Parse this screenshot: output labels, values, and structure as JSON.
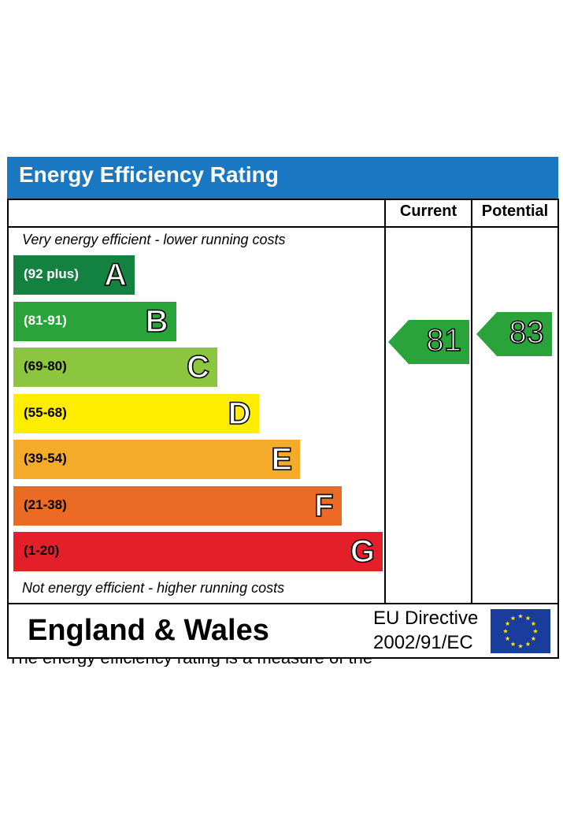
{
  "chart_data": {
    "type": "bar",
    "title": "Energy Efficiency Rating",
    "columns": [
      "Current",
      "Potential"
    ],
    "top_caption": "Very energy efficient - lower running costs",
    "bottom_caption": "Not energy efficient - higher running costs",
    "bands": [
      {
        "letter": "A",
        "range": "(92 plus)",
        "color": "#138140",
        "text_color": "#ffffff"
      },
      {
        "letter": "B",
        "range": "(81-91)",
        "color": "#2aa33b",
        "text_color": "#ffffff"
      },
      {
        "letter": "C",
        "range": "(69-80)",
        "color": "#8cc63f",
        "text_color": "#000000"
      },
      {
        "letter": "D",
        "range": "(55-68)",
        "color": "#ffed00",
        "text_color": "#000000"
      },
      {
        "letter": "E",
        "range": "(39-54)",
        "color": "#f4ab2a",
        "text_color": "#000000"
      },
      {
        "letter": "F",
        "range": "(21-38)",
        "color": "#ec6b24",
        "text_color": "#000000"
      },
      {
        "letter": "G",
        "range": "(1-20)",
        "color": "#e3202a",
        "text_color": "#000000"
      }
    ],
    "current": {
      "value": 81,
      "band": "B",
      "color": "#2aa33b"
    },
    "potential": {
      "value": 83,
      "band": "B",
      "color": "#2aa33b"
    }
  },
  "footer": {
    "region": "England & Wales",
    "directive_line1": "EU Directive",
    "directive_line2": "2002/91/EC"
  },
  "colors": {
    "title_bar": "#1a78c2",
    "eu_flag": "#1a3c9c",
    "eu_star": "#ffed00"
  },
  "icons": {
    "eu_flag": "eu-flag-icon"
  },
  "cutoff_text": "The energy efficiency rating is a measure of the"
}
